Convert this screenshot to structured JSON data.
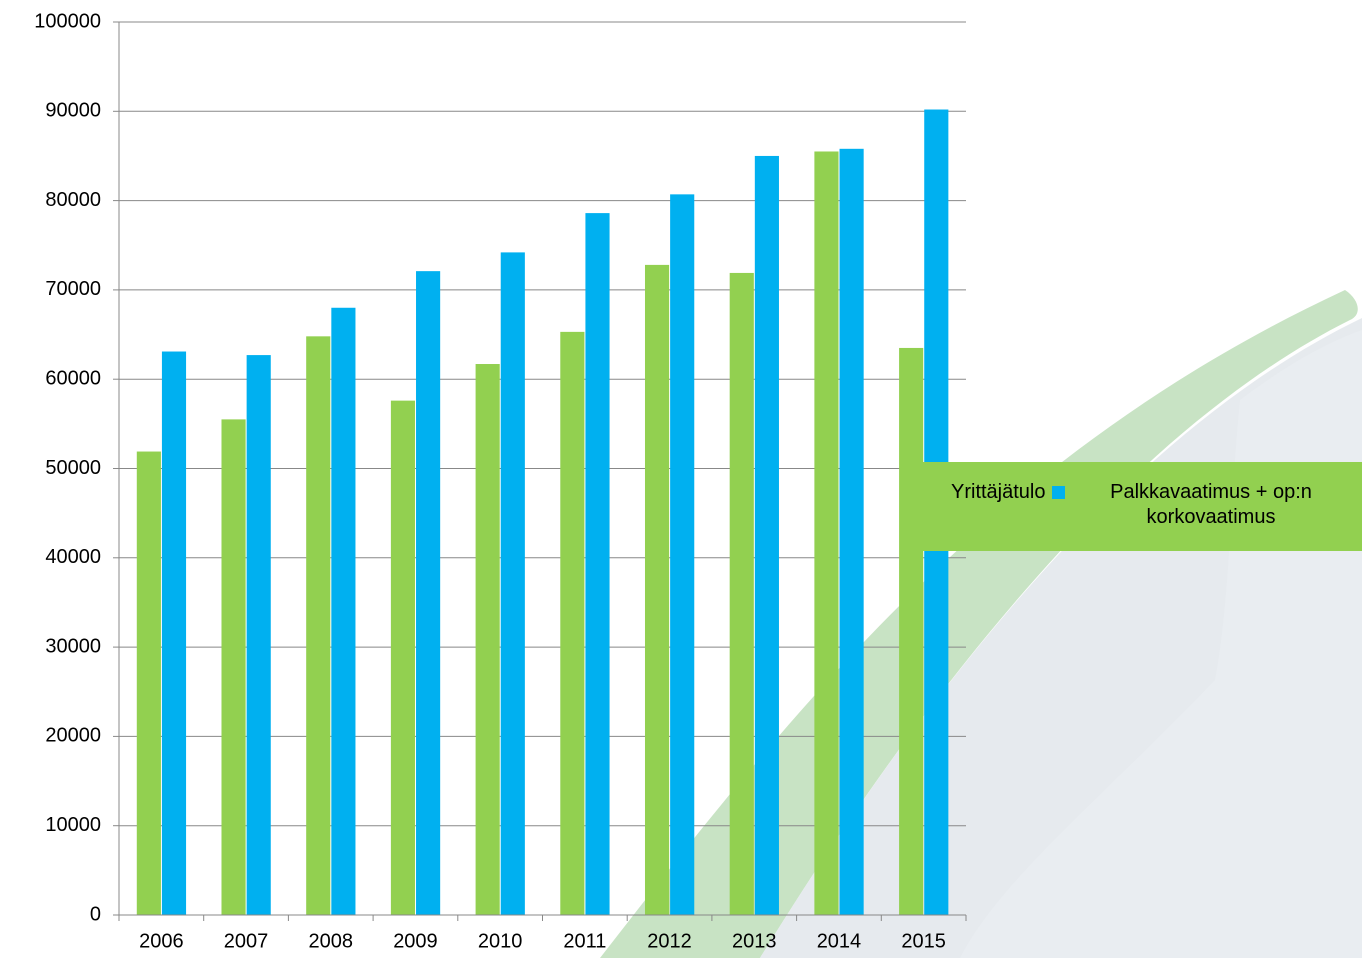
{
  "chart_data": {
    "type": "bar",
    "categories": [
      "2006",
      "2007",
      "2008",
      "2009",
      "2010",
      "2011",
      "2012",
      "2013",
      "2014",
      "2015"
    ],
    "series": [
      {
        "name": "Yrittäjätulo",
        "color": "#92d050",
        "values": [
          51900,
          55500,
          64800,
          57600,
          61700,
          65300,
          72800,
          71900,
          85500,
          63500
        ]
      },
      {
        "name": "Palkkavaatimus + op:n korkovaatimus",
        "color": "#00b0f0",
        "values": [
          63100,
          62700,
          68000,
          72100,
          74200,
          78600,
          80700,
          85000,
          85800,
          90200
        ]
      }
    ],
    "ylim": [
      0,
      100000
    ],
    "yticks": [
      0,
      10000,
      20000,
      30000,
      40000,
      50000,
      60000,
      70000,
      80000,
      90000,
      100000
    ],
    "grid": true,
    "legend": "right"
  }
}
